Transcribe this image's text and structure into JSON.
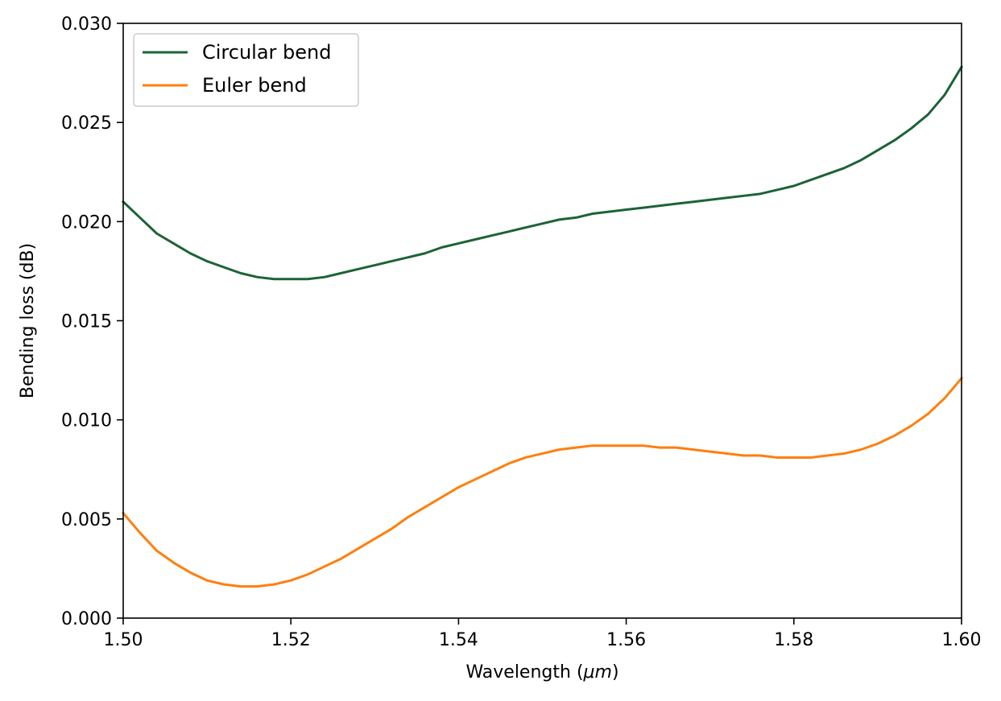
{
  "chart_data": {
    "type": "line",
    "title": "",
    "xlabel": "Wavelength (",
    "xlabel_symbol": "μm",
    "xlabel_close": ")",
    "ylabel": "Bending loss (dB)",
    "xlim": [
      1.5,
      1.6
    ],
    "ylim": [
      0.0,
      0.03
    ],
    "xticks": [
      1.5,
      1.52,
      1.54,
      1.56,
      1.58,
      1.6
    ],
    "xtick_labels": [
      "1.50",
      "1.52",
      "1.54",
      "1.56",
      "1.58",
      "1.60"
    ],
    "yticks": [
      0.0,
      0.005,
      0.01,
      0.015,
      0.02,
      0.025,
      0.03
    ],
    "ytick_labels": [
      "0.000",
      "0.005",
      "0.010",
      "0.015",
      "0.020",
      "0.025",
      "0.030"
    ],
    "grid": false,
    "legend_position": "top-left",
    "series": [
      {
        "name": "Circular bend",
        "color": "#1c6337",
        "x": [
          1.5,
          1.502,
          1.504,
          1.506,
          1.508,
          1.51,
          1.512,
          1.514,
          1.516,
          1.518,
          1.52,
          1.522,
          1.524,
          1.526,
          1.528,
          1.53,
          1.532,
          1.534,
          1.536,
          1.538,
          1.54,
          1.542,
          1.544,
          1.546,
          1.548,
          1.55,
          1.552,
          1.554,
          1.556,
          1.558,
          1.56,
          1.562,
          1.564,
          1.566,
          1.568,
          1.57,
          1.572,
          1.574,
          1.576,
          1.578,
          1.58,
          1.582,
          1.584,
          1.586,
          1.588,
          1.59,
          1.592,
          1.594,
          1.596,
          1.598,
          1.6
        ],
        "y": [
          0.021,
          0.0202,
          0.0194,
          0.0189,
          0.0184,
          0.018,
          0.0177,
          0.0174,
          0.0172,
          0.0171,
          0.0171,
          0.0171,
          0.0172,
          0.0174,
          0.0176,
          0.0178,
          0.018,
          0.0182,
          0.0184,
          0.0187,
          0.0189,
          0.0191,
          0.0193,
          0.0195,
          0.0197,
          0.0199,
          0.0201,
          0.0202,
          0.0204,
          0.0205,
          0.0206,
          0.0207,
          0.0208,
          0.0209,
          0.021,
          0.0211,
          0.0212,
          0.0213,
          0.0214,
          0.0216,
          0.0218,
          0.0221,
          0.0224,
          0.0227,
          0.0231,
          0.0236,
          0.0241,
          0.0247,
          0.0254,
          0.0264,
          0.0278
        ]
      },
      {
        "name": "Euler bend",
        "color": "#ff7f0e",
        "x": [
          1.5,
          1.502,
          1.504,
          1.506,
          1.508,
          1.51,
          1.512,
          1.514,
          1.516,
          1.518,
          1.52,
          1.522,
          1.524,
          1.526,
          1.528,
          1.53,
          1.532,
          1.534,
          1.536,
          1.538,
          1.54,
          1.542,
          1.544,
          1.546,
          1.548,
          1.55,
          1.552,
          1.554,
          1.556,
          1.558,
          1.56,
          1.562,
          1.564,
          1.566,
          1.568,
          1.57,
          1.572,
          1.574,
          1.576,
          1.578,
          1.58,
          1.582,
          1.584,
          1.586,
          1.588,
          1.59,
          1.592,
          1.594,
          1.596,
          1.598,
          1.6
        ],
        "y": [
          0.0053,
          0.0043,
          0.0034,
          0.0028,
          0.0023,
          0.0019,
          0.0017,
          0.0016,
          0.0016,
          0.0017,
          0.0019,
          0.0022,
          0.0026,
          0.003,
          0.0035,
          0.004,
          0.0045,
          0.0051,
          0.0056,
          0.0061,
          0.0066,
          0.007,
          0.0074,
          0.0078,
          0.0081,
          0.0083,
          0.0085,
          0.0086,
          0.0087,
          0.0087,
          0.0087,
          0.0087,
          0.0086,
          0.0086,
          0.0085,
          0.0084,
          0.0083,
          0.0082,
          0.0082,
          0.0081,
          0.0081,
          0.0081,
          0.0082,
          0.0083,
          0.0085,
          0.0088,
          0.0092,
          0.0097,
          0.0103,
          0.0111,
          0.0121
        ]
      }
    ]
  }
}
